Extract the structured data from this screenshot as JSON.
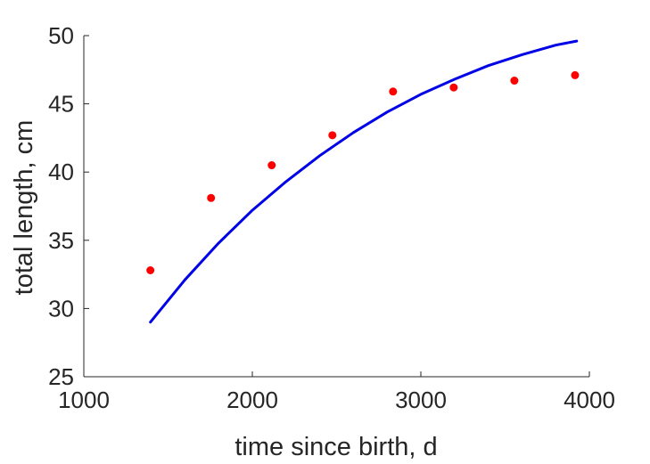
{
  "chart_data": {
    "type": "scatter",
    "xlabel": "time since birth, d",
    "ylabel": "total length, cm",
    "xlim": [
      1000,
      4000
    ],
    "ylim": [
      25,
      50
    ],
    "xticks": [
      "1000",
      "2000",
      "3000",
      "4000"
    ],
    "yticks": [
      "25",
      "30",
      "35",
      "40",
      "45",
      "50"
    ],
    "grid": false,
    "series": [
      {
        "type": "scatter",
        "color": "#ff0000",
        "x": [
          1395,
          1755,
          2115,
          2475,
          2835,
          3195,
          3555,
          3915
        ],
        "y": [
          32.8,
          38.1,
          40.5,
          42.7,
          45.9,
          46.2,
          46.7,
          47.1
        ]
      },
      {
        "type": "line",
        "color": "#0000e6",
        "x": [
          1395,
          1600,
          1800,
          2000,
          2200,
          2400,
          2600,
          2800,
          3000,
          3200,
          3400,
          3600,
          3800,
          3925
        ],
        "y": [
          29.0,
          32.1,
          34.8,
          37.2,
          39.3,
          41.2,
          42.9,
          44.4,
          45.7,
          46.8,
          47.8,
          48.6,
          49.3,
          49.6
        ]
      }
    ]
  }
}
